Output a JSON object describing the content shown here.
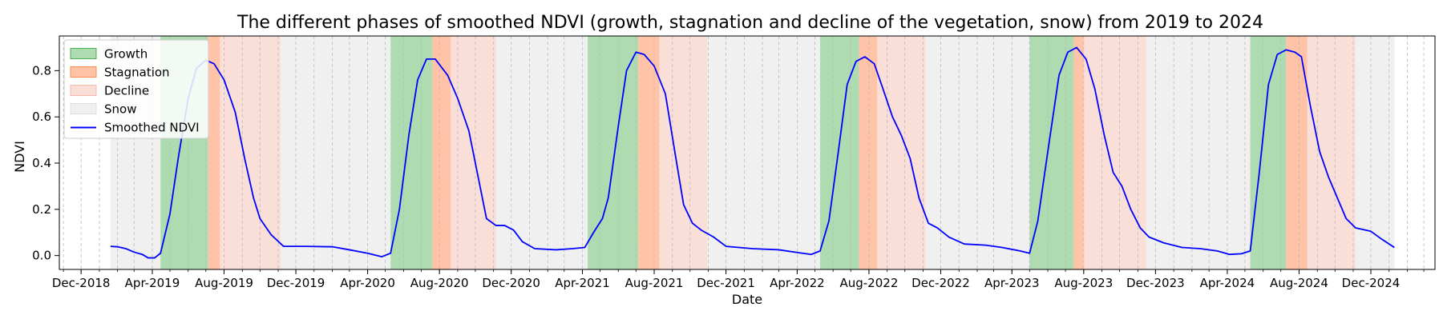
{
  "chart_data": {
    "type": "line",
    "title": "The different phases of smoothed NDVI (growth, stagnation and decline of the vegetation, snow) from 2019 to 2024",
    "xlabel": "Date",
    "ylabel": "NDVI",
    "xlim": [
      "2018-10-25",
      "2025-03-20"
    ],
    "ylim": [
      -0.06,
      0.95
    ],
    "grid": {
      "x_minor_dashed": true,
      "y": false
    },
    "x_ticks": [
      {
        "date": "2018-12-01",
        "label": "Dec-2018"
      },
      {
        "date": "2019-04-01",
        "label": "Apr-2019"
      },
      {
        "date": "2019-08-01",
        "label": "Aug-2019"
      },
      {
        "date": "2019-12-01",
        "label": "Dec-2019"
      },
      {
        "date": "2020-04-01",
        "label": "Apr-2020"
      },
      {
        "date": "2020-08-01",
        "label": "Aug-2020"
      },
      {
        "date": "2020-12-01",
        "label": "Dec-2020"
      },
      {
        "date": "2021-04-01",
        "label": "Apr-2021"
      },
      {
        "date": "2021-08-01",
        "label": "Aug-2021"
      },
      {
        "date": "2021-12-01",
        "label": "Dec-2021"
      },
      {
        "date": "2022-04-01",
        "label": "Apr-2022"
      },
      {
        "date": "2022-08-01",
        "label": "Aug-2022"
      },
      {
        "date": "2022-12-01",
        "label": "Dec-2022"
      },
      {
        "date": "2023-04-01",
        "label": "Apr-2023"
      },
      {
        "date": "2023-08-01",
        "label": "Aug-2023"
      },
      {
        "date": "2023-12-01",
        "label": "Dec-2023"
      },
      {
        "date": "2024-04-01",
        "label": "Apr-2024"
      },
      {
        "date": "2024-08-01",
        "label": "Aug-2024"
      },
      {
        "date": "2024-12-01",
        "label": "Dec-2024"
      }
    ],
    "y_ticks": [
      0.0,
      0.2,
      0.4,
      0.6,
      0.8
    ],
    "y_tick_labels": [
      "0.0",
      "0.2",
      "0.4",
      "0.6",
      "0.8"
    ],
    "legend": {
      "position": "upper-left",
      "entries": [
        {
          "label": "Growth",
          "kind": "patch",
          "color": "#4CAF50"
        },
        {
          "label": "Stagnation",
          "kind": "patch",
          "color": "#FF8A50"
        },
        {
          "label": "Decline",
          "kind": "patch",
          "color": "#F4B8A8"
        },
        {
          "label": "Snow",
          "kind": "patch",
          "color": "#DDDDDD"
        },
        {
          "label": "Smoothed NDVI",
          "kind": "line",
          "color": "#0000FF"
        }
      ]
    },
    "phase_colors": {
      "Growth": "#4CAF50",
      "Stagnation": "#FF8A50",
      "Decline": "#F4B8A8",
      "Snow": "#DDDDDD"
    },
    "phases": [
      {
        "phase": "Snow",
        "start": "2019-01-20",
        "end": "2019-04-15"
      },
      {
        "phase": "Growth",
        "start": "2019-04-15",
        "end": "2019-07-05"
      },
      {
        "phase": "Stagnation",
        "start": "2019-07-05",
        "end": "2019-07-25"
      },
      {
        "phase": "Decline",
        "start": "2019-07-25",
        "end": "2019-11-05"
      },
      {
        "phase": "Snow",
        "start": "2019-11-05",
        "end": "2020-05-10"
      },
      {
        "phase": "Growth",
        "start": "2020-05-10",
        "end": "2020-07-20"
      },
      {
        "phase": "Stagnation",
        "start": "2020-07-20",
        "end": "2020-08-20"
      },
      {
        "phase": "Decline",
        "start": "2020-08-20",
        "end": "2020-11-05"
      },
      {
        "phase": "Snow",
        "start": "2020-11-05",
        "end": "2021-04-10"
      },
      {
        "phase": "Growth",
        "start": "2021-04-10",
        "end": "2021-07-05"
      },
      {
        "phase": "Stagnation",
        "start": "2021-07-05",
        "end": "2021-08-10"
      },
      {
        "phase": "Decline",
        "start": "2021-08-10",
        "end": "2021-10-30"
      },
      {
        "phase": "Snow",
        "start": "2021-10-30",
        "end": "2022-05-10"
      },
      {
        "phase": "Growth",
        "start": "2022-05-10",
        "end": "2022-07-15"
      },
      {
        "phase": "Stagnation",
        "start": "2022-07-15",
        "end": "2022-08-15"
      },
      {
        "phase": "Decline",
        "start": "2022-08-15",
        "end": "2022-11-05"
      },
      {
        "phase": "Snow",
        "start": "2022-11-05",
        "end": "2023-05-01"
      },
      {
        "phase": "Growth",
        "start": "2023-05-01",
        "end": "2023-07-15"
      },
      {
        "phase": "Stagnation",
        "start": "2023-07-15",
        "end": "2023-08-01"
      },
      {
        "phase": "Decline",
        "start": "2023-08-01",
        "end": "2023-11-15"
      },
      {
        "phase": "Snow",
        "start": "2023-11-15",
        "end": "2024-05-10"
      },
      {
        "phase": "Growth",
        "start": "2024-05-10",
        "end": "2024-07-10"
      },
      {
        "phase": "Stagnation",
        "start": "2024-07-10",
        "end": "2024-08-15"
      },
      {
        "phase": "Decline",
        "start": "2024-08-15",
        "end": "2024-11-05"
      },
      {
        "phase": "Snow",
        "start": "2024-11-05",
        "end": "2025-01-10"
      }
    ],
    "series": [
      {
        "name": "Smoothed NDVI",
        "color": "#0000FF",
        "points": [
          [
            "2019-01-20",
            0.04
          ],
          [
            "2019-02-01",
            0.038
          ],
          [
            "2019-02-15",
            0.03
          ],
          [
            "2019-03-01",
            0.015
          ],
          [
            "2019-03-15",
            0.005
          ],
          [
            "2019-03-25",
            -0.01
          ],
          [
            "2019-04-05",
            -0.01
          ],
          [
            "2019-04-15",
            0.01
          ],
          [
            "2019-05-01",
            0.18
          ],
          [
            "2019-05-15",
            0.42
          ],
          [
            "2019-06-01",
            0.68
          ],
          [
            "2019-06-15",
            0.81
          ],
          [
            "2019-07-01",
            0.845
          ],
          [
            "2019-07-15",
            0.83
          ],
          [
            "2019-08-01",
            0.76
          ],
          [
            "2019-08-20",
            0.62
          ],
          [
            "2019-09-05",
            0.42
          ],
          [
            "2019-09-20",
            0.25
          ],
          [
            "2019-10-01",
            0.16
          ],
          [
            "2019-10-20",
            0.09
          ],
          [
            "2019-11-10",
            0.04
          ],
          [
            "2019-12-15",
            0.04
          ],
          [
            "2020-02-01",
            0.038
          ],
          [
            "2020-03-01",
            0.025
          ],
          [
            "2020-04-01",
            0.01
          ],
          [
            "2020-04-25",
            -0.005
          ],
          [
            "2020-05-10",
            0.01
          ],
          [
            "2020-05-25",
            0.2
          ],
          [
            "2020-06-10",
            0.52
          ],
          [
            "2020-06-25",
            0.76
          ],
          [
            "2020-07-10",
            0.85
          ],
          [
            "2020-07-25",
            0.85
          ],
          [
            "2020-08-15",
            0.78
          ],
          [
            "2020-09-01",
            0.68
          ],
          [
            "2020-09-20",
            0.54
          ],
          [
            "2020-10-05",
            0.35
          ],
          [
            "2020-10-20",
            0.16
          ],
          [
            "2020-11-05",
            0.13
          ],
          [
            "2020-11-20",
            0.13
          ],
          [
            "2020-12-05",
            0.11
          ],
          [
            "2020-12-20",
            0.06
          ],
          [
            "2021-01-10",
            0.03
          ],
          [
            "2021-02-15",
            0.025
          ],
          [
            "2021-03-15",
            0.03
          ],
          [
            "2021-04-05",
            0.035
          ],
          [
            "2021-04-20",
            0.1
          ],
          [
            "2021-05-05",
            0.16
          ],
          [
            "2021-05-15",
            0.25
          ],
          [
            "2021-06-01",
            0.56
          ],
          [
            "2021-06-15",
            0.8
          ],
          [
            "2021-07-01",
            0.88
          ],
          [
            "2021-07-15",
            0.87
          ],
          [
            "2021-08-01",
            0.82
          ],
          [
            "2021-08-20",
            0.7
          ],
          [
            "2021-09-05",
            0.45
          ],
          [
            "2021-09-20",
            0.22
          ],
          [
            "2021-10-05",
            0.14
          ],
          [
            "2021-10-20",
            0.11
          ],
          [
            "2021-11-10",
            0.08
          ],
          [
            "2021-12-01",
            0.04
          ],
          [
            "2022-01-15",
            0.03
          ],
          [
            "2022-03-01",
            0.025
          ],
          [
            "2022-04-10",
            0.01
          ],
          [
            "2022-04-25",
            0.005
          ],
          [
            "2022-05-10",
            0.02
          ],
          [
            "2022-05-25",
            0.15
          ],
          [
            "2022-06-10",
            0.45
          ],
          [
            "2022-06-25",
            0.74
          ],
          [
            "2022-07-10",
            0.84
          ],
          [
            "2022-07-25",
            0.86
          ],
          [
            "2022-08-10",
            0.83
          ],
          [
            "2022-08-25",
            0.72
          ],
          [
            "2022-09-10",
            0.6
          ],
          [
            "2022-09-25",
            0.52
          ],
          [
            "2022-10-10",
            0.42
          ],
          [
            "2022-10-25",
            0.25
          ],
          [
            "2022-11-10",
            0.14
          ],
          [
            "2022-11-25",
            0.12
          ],
          [
            "2022-12-15",
            0.08
          ],
          [
            "2023-01-10",
            0.05
          ],
          [
            "2023-02-15",
            0.045
          ],
          [
            "2023-03-15",
            0.035
          ],
          [
            "2023-04-15",
            0.02
          ],
          [
            "2023-05-01",
            0.01
          ],
          [
            "2023-05-15",
            0.15
          ],
          [
            "2023-06-01",
            0.45
          ],
          [
            "2023-06-20",
            0.78
          ],
          [
            "2023-07-05",
            0.88
          ],
          [
            "2023-07-20",
            0.9
          ],
          [
            "2023-08-05",
            0.85
          ],
          [
            "2023-08-20",
            0.72
          ],
          [
            "2023-09-05",
            0.52
          ],
          [
            "2023-09-20",
            0.36
          ],
          [
            "2023-10-05",
            0.3
          ],
          [
            "2023-10-20",
            0.2
          ],
          [
            "2023-11-05",
            0.12
          ],
          [
            "2023-11-20",
            0.08
          ],
          [
            "2023-12-15",
            0.055
          ],
          [
            "2024-01-15",
            0.035
          ],
          [
            "2024-02-15",
            0.03
          ],
          [
            "2024-03-15",
            0.02
          ],
          [
            "2024-04-05",
            0.005
          ],
          [
            "2024-04-25",
            0.008
          ],
          [
            "2024-05-10",
            0.02
          ],
          [
            "2024-05-25",
            0.35
          ],
          [
            "2024-06-10",
            0.74
          ],
          [
            "2024-06-25",
            0.87
          ],
          [
            "2024-07-10",
            0.89
          ],
          [
            "2024-07-25",
            0.88
          ],
          [
            "2024-08-05",
            0.86
          ],
          [
            "2024-08-20",
            0.65
          ],
          [
            "2024-09-05",
            0.45
          ],
          [
            "2024-09-20",
            0.34
          ],
          [
            "2024-10-05",
            0.25
          ],
          [
            "2024-10-20",
            0.16
          ],
          [
            "2024-11-05",
            0.12
          ],
          [
            "2024-12-01",
            0.105
          ],
          [
            "2024-12-20",
            0.07
          ],
          [
            "2025-01-10",
            0.035
          ]
        ]
      }
    ]
  }
}
